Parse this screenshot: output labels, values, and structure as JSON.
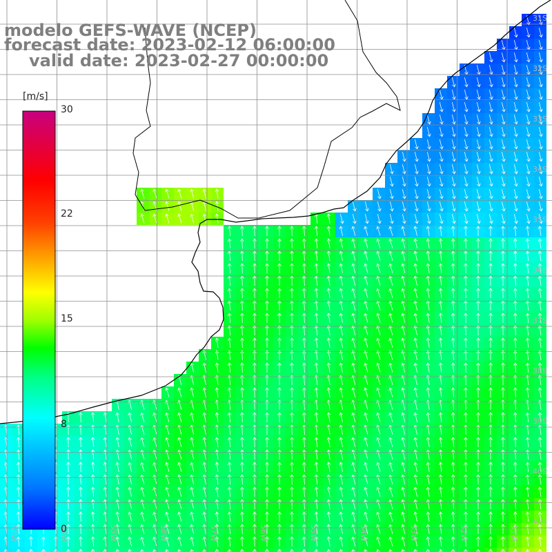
{
  "title": {
    "line1": "modelo GEFS-WAVE (NCEP)",
    "line2": "forecast date: 2023-02-12 06:00:00",
    "line3": "valid date: 2023-02-27 00:00:00"
  },
  "colorbar": {
    "unit": "[m/s]",
    "ticks": [
      "30",
      "22",
      "15",
      "8",
      "0"
    ],
    "min": 0,
    "max": 30,
    "stops": [
      {
        "v": 0,
        "c": "#0000ff"
      },
      {
        "v": 3,
        "c": "#0078ff"
      },
      {
        "v": 6,
        "c": "#00c8ff"
      },
      {
        "v": 8,
        "c": "#00ffff"
      },
      {
        "v": 11,
        "c": "#00ff80"
      },
      {
        "v": 13,
        "c": "#00ff00"
      },
      {
        "v": 15,
        "c": "#a0ff00"
      },
      {
        "v": 17,
        "c": "#ffff00"
      },
      {
        "v": 19.5,
        "c": "#ffa000"
      },
      {
        "v": 22,
        "c": "#ff4000"
      },
      {
        "v": 25,
        "c": "#ff0000"
      },
      {
        "v": 30,
        "c": "#c8007f"
      }
    ]
  },
  "map": {
    "colors": {
      "land": "#ffffff",
      "coast": "#000000",
      "grid": "#8c8c8c",
      "arrow": "#ffffff",
      "label": "#b4b4b4"
    },
    "lon_labels": [
      "61W",
      "60W",
      "59W",
      "58W",
      "57W",
      "56W",
      "55W",
      "54W",
      "53W",
      "52W",
      "51W"
    ],
    "lat_labels": [
      "31S",
      "32S",
      "33S",
      "34S",
      "35S",
      "36S",
      "37S",
      "38S",
      "39S",
      "40S",
      "41S"
    ],
    "field_note": "wind speed shaded, wind direction arrows"
  }
}
